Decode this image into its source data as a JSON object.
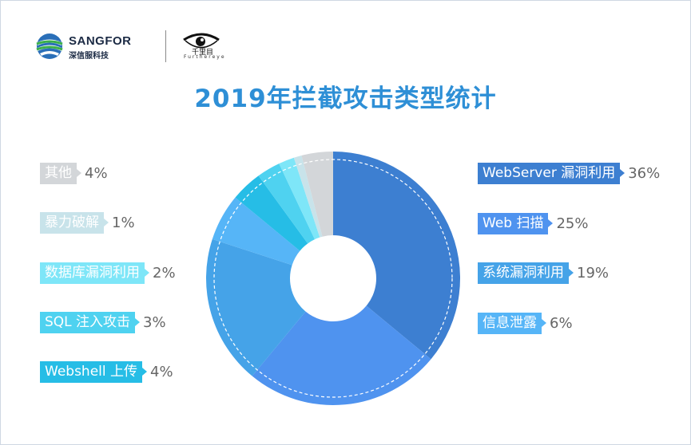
{
  "header": {
    "brand_name": "SANGFOR",
    "brand_sub": "深信服科技",
    "partner_sub": "Furthereye",
    "partner_glyphs": "千里目"
  },
  "title": "2019年拦截攻击类型统计",
  "chart_data": {
    "type": "pie",
    "title": "2019年拦截攻击类型统计",
    "slices": [
      {
        "label": "WebServer 漏洞利用",
        "value": 36,
        "display": "36%",
        "color": "#3d7fd1"
      },
      {
        "label": "Web 扫描",
        "value": 25,
        "display": "25%",
        "color": "#4f93ef"
      },
      {
        "label": "系统漏洞利用",
        "value": 19,
        "display": "19%",
        "color": "#45a3e8"
      },
      {
        "label": "信息泄露",
        "value": 6,
        "display": "6%",
        "color": "#56b5f7"
      },
      {
        "label": "Webshell 上传",
        "value": 4,
        "display": "4%",
        "color": "#26bde6"
      },
      {
        "label": "SQL 注入攻击",
        "value": 3,
        "display": "3%",
        "color": "#4fd2f0"
      },
      {
        "label": "数据库漏洞利用",
        "value": 2,
        "display": "2%",
        "color": "#7ee6f8"
      },
      {
        "label": "暴力破解",
        "value": 1,
        "display": "1%",
        "color": "#c8e3ea"
      },
      {
        "label": "其他",
        "value": 4,
        "display": "4%",
        "color": "#d3d6d9"
      }
    ],
    "legend_right": [
      0,
      1,
      2,
      3
    ],
    "legend_left": [
      8,
      7,
      6,
      5,
      4
    ]
  }
}
